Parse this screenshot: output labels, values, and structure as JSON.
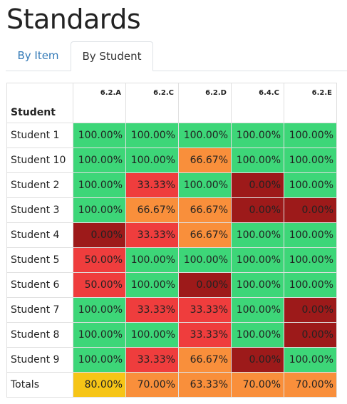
{
  "page": {
    "title": "Standards"
  },
  "tabs": [
    {
      "label": "By Item",
      "active": false
    },
    {
      "label": "By Student",
      "active": true
    }
  ],
  "colors": {
    "green": "#3dd678",
    "orange": "#f98f3b",
    "red": "#ef3d3d",
    "dark_red": "#9d1a1a",
    "yellow": "#f6c517",
    "link": "#337ab7"
  },
  "table": {
    "corner_label": "Student",
    "standards": [
      "6.2.A",
      "6.2.C",
      "6.2.D",
      "6.4.C",
      "6.2.E"
    ],
    "rows": [
      {
        "student": "Student 1",
        "values": [
          "100.00%",
          "100.00%",
          "100.00%",
          "100.00%",
          "100.00%"
        ],
        "levels": [
          "g",
          "g",
          "g",
          "g",
          "g"
        ]
      },
      {
        "student": "Student 10",
        "values": [
          "100.00%",
          "100.00%",
          "66.67%",
          "100.00%",
          "100.00%"
        ],
        "levels": [
          "g",
          "g",
          "o",
          "g",
          "g"
        ]
      },
      {
        "student": "Student 2",
        "values": [
          "100.00%",
          "33.33%",
          "100.00%",
          "0.00%",
          "100.00%"
        ],
        "levels": [
          "g",
          "r",
          "g",
          "d",
          "g"
        ]
      },
      {
        "student": "Student 3",
        "values": [
          "100.00%",
          "66.67%",
          "66.67%",
          "0.00%",
          "0.00%"
        ],
        "levels": [
          "g",
          "o",
          "o",
          "d",
          "d"
        ]
      },
      {
        "student": "Student 4",
        "values": [
          "0.00%",
          "33.33%",
          "66.67%",
          "100.00%",
          "100.00%"
        ],
        "levels": [
          "d",
          "r",
          "o",
          "g",
          "g"
        ]
      },
      {
        "student": "Student 5",
        "values": [
          "50.00%",
          "100.00%",
          "100.00%",
          "100.00%",
          "100.00%"
        ],
        "levels": [
          "r",
          "g",
          "g",
          "g",
          "g"
        ]
      },
      {
        "student": "Student 6",
        "values": [
          "50.00%",
          "100.00%",
          "0.00%",
          "100.00%",
          "100.00%"
        ],
        "levels": [
          "r",
          "g",
          "d",
          "g",
          "g"
        ]
      },
      {
        "student": "Student 7",
        "values": [
          "100.00%",
          "33.33%",
          "33.33%",
          "100.00%",
          "0.00%"
        ],
        "levels": [
          "g",
          "r",
          "r",
          "g",
          "d"
        ]
      },
      {
        "student": "Student 8",
        "values": [
          "100.00%",
          "100.00%",
          "33.33%",
          "100.00%",
          "0.00%"
        ],
        "levels": [
          "g",
          "g",
          "r",
          "g",
          "d"
        ]
      },
      {
        "student": "Student 9",
        "values": [
          "100.00%",
          "33.33%",
          "66.67%",
          "0.00%",
          "100.00%"
        ],
        "levels": [
          "g",
          "r",
          "o",
          "d",
          "g"
        ]
      }
    ],
    "totals": {
      "label": "Totals",
      "values": [
        "80.00%",
        "70.00%",
        "63.33%",
        "70.00%",
        "70.00%"
      ],
      "levels": [
        "y",
        "o",
        "o",
        "o",
        "o"
      ]
    }
  }
}
